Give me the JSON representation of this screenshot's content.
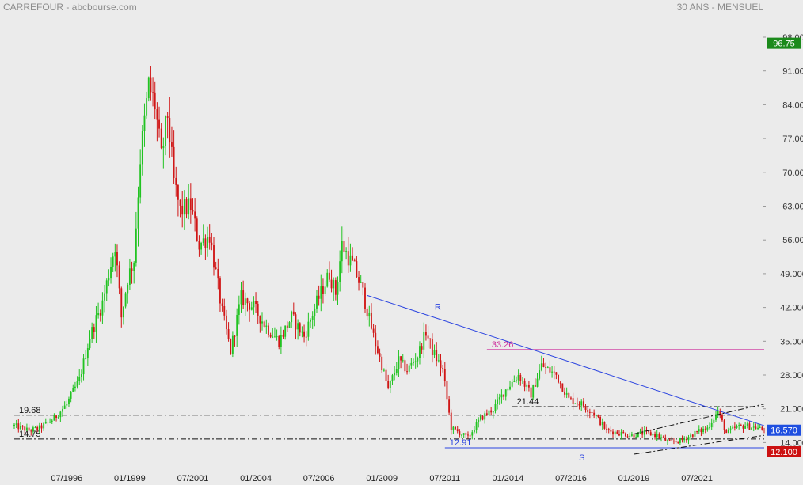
{
  "header": {
    "title": "CARREFOUR - abcbourse.com",
    "subtitle": "30 ANS - MENSUEL"
  },
  "colors": {
    "background": "#ebebeb",
    "up_candle": "#22c322",
    "down_candle": "#d01616",
    "resistance_line": "#2b44e0",
    "support_line": "#2b44e0",
    "level_33": "#cc2a9a",
    "dashdot": "#111111",
    "badge_last": "#1f4fe0",
    "badge_high": "#1b8a1b",
    "badge_low": "#cc1111"
  },
  "chart_data": {
    "type": "candlestick",
    "title": "CARREFOUR - abcbourse.com",
    "subtitle": "30 ANS - MENSUEL",
    "x_axis": {
      "type": "date",
      "range": [
        "1994-06",
        "2024-03"
      ],
      "tick_labels": [
        "07/1996",
        "01/1999",
        "07/2001",
        "01/2004",
        "07/2006",
        "01/2009",
        "07/2011",
        "01/2014",
        "07/2016",
        "01/2019",
        "07/2021"
      ],
      "tick_dates": [
        "1996-07",
        "1999-01",
        "2001-07",
        "2004-01",
        "2006-07",
        "2009-01",
        "2011-07",
        "2014-01",
        "2016-07",
        "2019-01",
        "2021-07"
      ]
    },
    "y_axis": {
      "range": [
        12.1,
        98
      ],
      "position": "right",
      "tick_labels": [
        "98.00",
        "91.00",
        "84.00",
        "77.00",
        "70.00",
        "63.00",
        "56.00",
        "49.000",
        "42.000",
        "35.000",
        "28.000",
        "21.000",
        "14.000"
      ],
      "tick_values": [
        98,
        91,
        84,
        77,
        70,
        63,
        56,
        49,
        42,
        35,
        28,
        21,
        14
      ]
    },
    "price_path": [
      [
        "1994-06",
        17.5
      ],
      [
        "1995-01",
        16.5
      ],
      [
        "1995-06",
        17.0
      ],
      [
        "1996-01",
        19.0
      ],
      [
        "1996-07",
        22.0
      ],
      [
        "1997-01",
        27.0
      ],
      [
        "1997-06",
        36.0
      ],
      [
        "1997-12",
        43.0
      ],
      [
        "1998-06",
        55.0
      ],
      [
        "1998-09",
        40.0
      ],
      [
        "1998-12",
        48.0
      ],
      [
        "1999-03",
        52.0
      ],
      [
        "1999-06",
        73.0
      ],
      [
        "1999-10",
        88.0
      ],
      [
        "2000-01",
        84.0
      ],
      [
        "2000-04",
        73.0
      ],
      [
        "2000-07",
        82.0
      ],
      [
        "2000-10",
        68.0
      ],
      [
        "2001-01",
        62.0
      ],
      [
        "2001-06",
        63.0
      ],
      [
        "2001-10",
        55.0
      ],
      [
        "2002-03",
        57.0
      ],
      [
        "2002-09",
        41.0
      ],
      [
        "2003-01",
        33.0
      ],
      [
        "2003-06",
        44.0
      ],
      [
        "2003-12",
        42.0
      ],
      [
        "2004-06",
        38.0
      ],
      [
        "2004-12",
        35.0
      ],
      [
        "2005-06",
        40.0
      ],
      [
        "2005-12",
        36.0
      ],
      [
        "2006-06",
        43.0
      ],
      [
        "2006-12",
        49.0
      ],
      [
        "2007-03",
        45.0
      ],
      [
        "2007-06",
        55.0
      ],
      [
        "2007-12",
        50.0
      ],
      [
        "2008-04",
        45.0
      ],
      [
        "2008-09",
        36.0
      ],
      [
        "2009-01",
        30.0
      ],
      [
        "2009-04",
        25.0
      ],
      [
        "2009-09",
        31.0
      ],
      [
        "2010-01",
        29.0
      ],
      [
        "2010-06",
        32.0
      ],
      [
        "2010-10",
        37.0
      ],
      [
        "2011-01",
        33.0
      ],
      [
        "2011-06",
        29.0
      ],
      [
        "2011-10",
        17.0
      ],
      [
        "2012-06",
        15.0
      ],
      [
        "2012-12",
        19.0
      ],
      [
        "2013-06",
        21.0
      ],
      [
        "2013-12",
        25.0
      ],
      [
        "2014-06",
        28.0
      ],
      [
        "2014-12",
        24.0
      ],
      [
        "2015-05",
        30.0
      ],
      [
        "2015-12",
        28.0
      ],
      [
        "2016-06",
        23.0
      ],
      [
        "2016-12",
        22.0
      ],
      [
        "2017-06",
        20.0
      ],
      [
        "2017-12",
        16.5
      ],
      [
        "2018-06",
        16.0
      ],
      [
        "2018-12",
        15.5
      ],
      [
        "2019-06",
        16.0
      ],
      [
        "2019-12",
        15.5
      ],
      [
        "2020-06",
        14.0
      ],
      [
        "2020-12",
        14.5
      ],
      [
        "2021-06",
        16.0
      ],
      [
        "2021-12",
        17.0
      ],
      [
        "2022-05",
        20.5
      ],
      [
        "2022-09",
        16.0
      ],
      [
        "2023-01",
        17.0
      ],
      [
        "2023-06",
        17.5
      ],
      [
        "2023-12",
        17.0
      ],
      [
        "2024-03",
        16.57
      ]
    ],
    "annotations": {
      "resistance": {
        "label": "R",
        "from": [
          "2008-06",
          44.5
        ],
        "to": [
          "2024-03",
          17.5
        ]
      },
      "support": {
        "label": "S",
        "from": [
          "2011-07",
          12.91
        ],
        "to": [
          "2024-03",
          12.91
        ]
      },
      "levels": [
        {
          "label": "33.26",
          "value": 33.26,
          "from": "2013-03",
          "style": "solid",
          "color_key": "level_33"
        },
        {
          "label": "21.44",
          "value": 21.44,
          "from": "2014-03",
          "style": "dashdot",
          "color_key": "dashdot"
        },
        {
          "label": "19.68",
          "value": 19.68,
          "from": "1994-06",
          "style": "dashdot",
          "color_key": "dashdot"
        },
        {
          "label": "14.75",
          "value": 14.75,
          "from": "1994-06",
          "style": "dashdot",
          "color_key": "dashdot"
        },
        {
          "label": "12.91",
          "value": 12.91,
          "from": "2011-07",
          "style": "solid",
          "color_key": "support_line"
        }
      ],
      "channel": [
        {
          "from": [
            "2019-01",
            11.6
          ],
          "to": [
            "2024-03",
            15.5
          ]
        },
        {
          "from": [
            "2019-01",
            15.8
          ],
          "to": [
            "2024-03",
            22.0
          ]
        }
      ]
    },
    "badges": [
      {
        "label": "96.75",
        "value": 96.75,
        "color_key": "badge_high"
      },
      {
        "label": "16.570",
        "value": 16.57,
        "color_key": "badge_last"
      },
      {
        "label": "12.100",
        "value": 12.1,
        "color_key": "badge_low"
      }
    ]
  }
}
